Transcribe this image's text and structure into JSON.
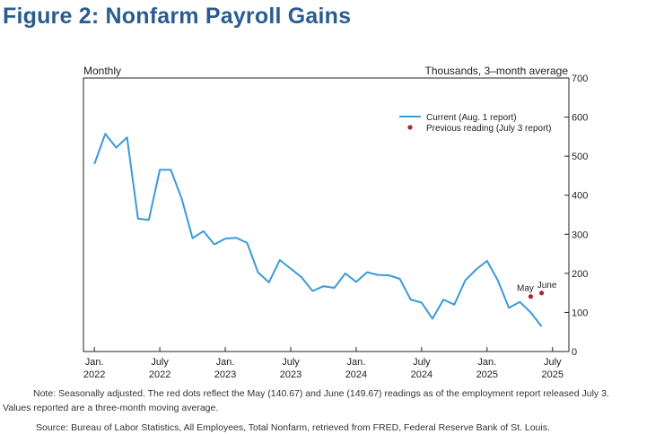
{
  "title": "Figure 2: Nonfarm Payroll Gains",
  "notes": {
    "line1": "Note: Seasonally adjusted. The red dots reflect the May (140.67) and June (149.67) readings as of the employment report released July 3.",
    "line2": "Values reported are a three-month moving average.",
    "source": "Source: Bureau of Labor Statistics, All Employees, Total Nonfarm, retrieved from FRED, Federal Reserve Bank of St. Louis."
  },
  "chart_data": {
    "type": "line",
    "title": "Figure 2: Nonfarm Payroll Gains",
    "left_label": "Monthly",
    "right_label": "Thousands, 3–month average",
    "ylim": [
      0,
      700
    ],
    "y_ticks": [
      0,
      100,
      200,
      300,
      400,
      500,
      600,
      700
    ],
    "y_tick_labels": [
      "0",
      "100",
      "200",
      "300",
      "400",
      "500",
      "600",
      "700"
    ],
    "x_ticks": [
      {
        "index": 0,
        "line1": "Jan.",
        "line2": "2022"
      },
      {
        "index": 6,
        "line1": "July",
        "line2": "2022"
      },
      {
        "index": 12,
        "line1": "Jan.",
        "line2": "2023"
      },
      {
        "index": 18,
        "line1": "July",
        "line2": "2023"
      },
      {
        "index": 24,
        "line1": "Jan.",
        "line2": "2024"
      },
      {
        "index": 30,
        "line1": "July",
        "line2": "2024"
      },
      {
        "index": 36,
        "line1": "Jan.",
        "line2": "2025"
      },
      {
        "index": 42,
        "line1": "July",
        "line2": "2025"
      }
    ],
    "x_range": [
      -1,
      43.5
    ],
    "grid": false,
    "legend_position": "top-right",
    "series": [
      {
        "name": "Current (Aug. 1 report)",
        "color": "#3a9ad9",
        "x": [
          0,
          1,
          2,
          3,
          4,
          5,
          6,
          7,
          8,
          9,
          10,
          11,
          12,
          13,
          14,
          15,
          16,
          17,
          18,
          19,
          20,
          21,
          22,
          23,
          24,
          25,
          26,
          27,
          28,
          29,
          30,
          31,
          32,
          33,
          34,
          35,
          36,
          37,
          38,
          39,
          40,
          41
        ],
        "values": [
          480,
          557,
          522,
          548,
          340,
          337,
          465,
          465,
          392,
          290,
          308,
          274,
          289,
          291,
          278,
          203,
          177,
          234,
          212,
          190,
          155,
          167,
          163,
          200,
          178,
          203,
          196,
          195,
          186,
          133,
          125,
          84,
          133,
          120,
          182,
          210,
          232,
          181,
          112,
          127,
          100,
          64
        ]
      }
    ],
    "points": {
      "name": "Previous reading (July 3 report)",
      "color": "#a52a2a",
      "x": [
        40,
        41
      ],
      "values": [
        140.67,
        149.67
      ],
      "labels": [
        "May",
        "June"
      ]
    }
  }
}
